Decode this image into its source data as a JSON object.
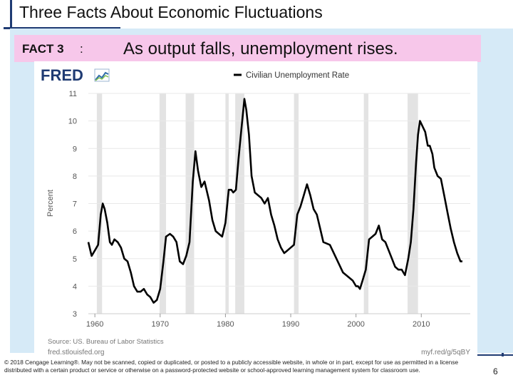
{
  "slide": {
    "title": "Three Facts About Economic Fluctuations",
    "fact_label": "FACT 3",
    "fact_separator": ":",
    "fact_text": "As output falls, unemployment rises.",
    "copyright": "© 2018 Cengage Learning®. May not be scanned, copied or duplicated, or posted to a publicly accessible website, in whole or in part, except for use as permitted in a license distributed with a certain product or service or otherwise on a password-protected website or school-approved learning management system for classroom use.",
    "page_number": "6"
  },
  "colors": {
    "accent": "#1f3b73",
    "slide_background": "#d6eaf7",
    "fact_band": "#f7c7ea",
    "series_line": "#000000",
    "recession_shading": "#e3e3e3",
    "gridline": "#e8e8e8"
  },
  "fred": {
    "logo_text": "FRED",
    "logo_icon": "line-chart-icon"
  },
  "chart_data": {
    "type": "line",
    "title": "",
    "xlabel": "",
    "ylabel": "Percent",
    "legend": {
      "entries": [
        "Civilian Unemployment Rate"
      ],
      "placement": "top-center"
    },
    "xlim": [
      1959,
      2017.5
    ],
    "ylim": [
      3,
      11
    ],
    "x_ticks": [
      1960,
      1970,
      1980,
      1990,
      2000,
      2010
    ],
    "y_ticks": [
      3,
      4,
      5,
      6,
      7,
      8,
      9,
      10,
      11
    ],
    "grid": "horizontal",
    "source": "Source: US. Bureau of Labor Statistics",
    "site": "fred.stlouisfed.org",
    "short_url": "myf.red/g/5qBY",
    "recessions": [
      [
        1960.3,
        1961.1
      ],
      [
        1969.9,
        1970.9
      ],
      [
        1973.9,
        1975.2
      ],
      [
        1980.0,
        1980.5
      ],
      [
        1981.5,
        1982.9
      ],
      [
        1990.5,
        1991.2
      ],
      [
        2001.2,
        2001.9
      ],
      [
        2007.9,
        2009.5
      ]
    ],
    "series": [
      {
        "name": "Civilian Unemployment Rate",
        "x": [
          1959.0,
          1959.5,
          1960.0,
          1960.5,
          1960.9,
          1961.2,
          1961.5,
          1961.9,
          1962.3,
          1962.6,
          1963.0,
          1963.5,
          1964.0,
          1964.5,
          1965.0,
          1965.5,
          1966.0,
          1966.5,
          1967.0,
          1967.5,
          1968.0,
          1968.5,
          1969.0,
          1969.5,
          1970.0,
          1970.5,
          1970.9,
          1971.5,
          1972.0,
          1972.5,
          1973.0,
          1973.5,
          1974.0,
          1974.5,
          1975.0,
          1975.4,
          1975.8,
          1976.3,
          1976.8,
          1977.5,
          1978.0,
          1978.5,
          1979.0,
          1979.5,
          1980.0,
          1980.5,
          1980.9,
          1981.2,
          1981.6,
          1982.0,
          1982.4,
          1982.9,
          1983.2,
          1983.6,
          1984.0,
          1984.5,
          1985.0,
          1985.5,
          1986.0,
          1986.5,
          1987.0,
          1987.5,
          1988.0,
          1988.5,
          1989.0,
          1989.5,
          1990.0,
          1990.5,
          1991.0,
          1991.5,
          1992.0,
          1992.5,
          1993.0,
          1993.5,
          1994.0,
          1994.5,
          1995.0,
          1996.0,
          1997.0,
          1998.0,
          1999.0,
          1999.5,
          2000.0,
          2000.3,
          2000.6,
          2001.0,
          2001.5,
          2002.0,
          2002.5,
          2003.0,
          2003.5,
          2004.0,
          2004.5,
          2005.0,
          2005.5,
          2006.0,
          2006.5,
          2007.0,
          2007.5,
          2008.0,
          2008.4,
          2008.8,
          2009.2,
          2009.5,
          2009.8,
          2010.2,
          2010.6,
          2011.0,
          2011.3,
          2011.7,
          2012.0,
          2012.5,
          2013.0,
          2013.5,
          2014.0,
          2014.5,
          2015.0,
          2015.5,
          2016.0,
          2016.3
        ],
        "y": [
          5.6,
          5.1,
          5.3,
          5.5,
          6.6,
          7.0,
          6.8,
          6.3,
          5.6,
          5.5,
          5.7,
          5.6,
          5.4,
          5.0,
          4.9,
          4.5,
          4.0,
          3.8,
          3.8,
          3.9,
          3.7,
          3.6,
          3.4,
          3.5,
          3.9,
          4.9,
          5.8,
          5.9,
          5.8,
          5.6,
          4.9,
          4.8,
          5.1,
          5.6,
          7.8,
          8.9,
          8.2,
          7.6,
          7.8,
          7.1,
          6.4,
          6.0,
          5.9,
          5.8,
          6.3,
          7.5,
          7.5,
          7.4,
          7.5,
          8.6,
          9.6,
          10.8,
          10.4,
          9.5,
          8.0,
          7.4,
          7.3,
          7.2,
          7.0,
          7.2,
          6.6,
          6.2,
          5.7,
          5.4,
          5.2,
          5.3,
          5.4,
          5.5,
          6.6,
          6.9,
          7.3,
          7.7,
          7.3,
          6.8,
          6.6,
          6.1,
          5.6,
          5.5,
          5.0,
          4.5,
          4.3,
          4.2,
          4.0,
          4.0,
          3.9,
          4.2,
          4.6,
          5.7,
          5.8,
          5.9,
          6.2,
          5.7,
          5.6,
          5.3,
          5.0,
          4.7,
          4.6,
          4.6,
          4.4,
          5.0,
          5.6,
          6.8,
          8.5,
          9.5,
          10.0,
          9.8,
          9.6,
          9.1,
          9.1,
          8.8,
          8.3,
          8.0,
          7.9,
          7.3,
          6.7,
          6.1,
          5.6,
          5.2,
          4.9,
          4.9
        ]
      }
    ]
  }
}
